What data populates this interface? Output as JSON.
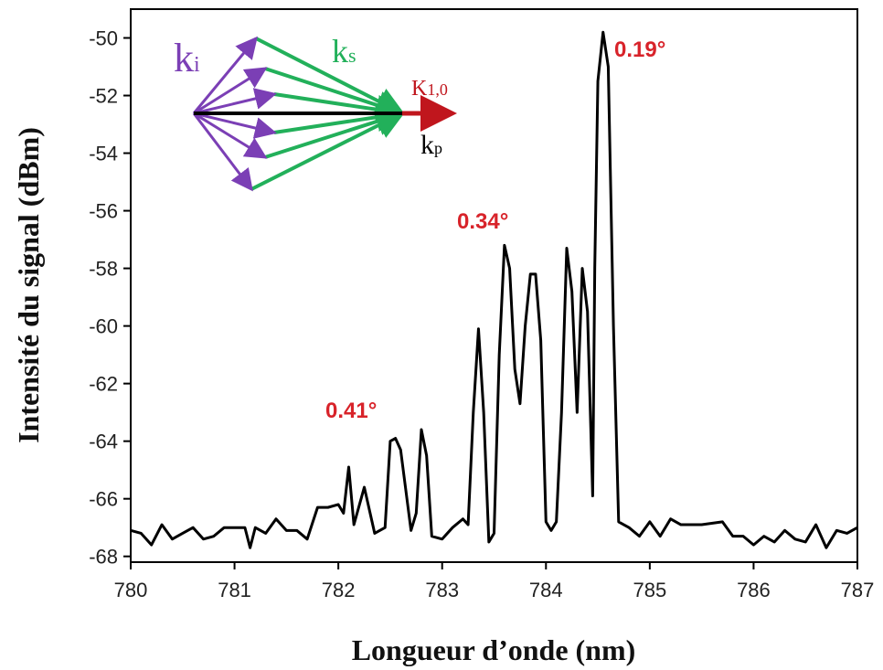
{
  "chart_data": {
    "type": "line",
    "x_label": "Longueur d’onde (nm)",
    "y_label": "Intensité du signal (dBm)",
    "xlim": [
      780,
      787
    ],
    "xticks": [
      780,
      781,
      782,
      783,
      784,
      785,
      786,
      787
    ],
    "ylim": [
      -68.2,
      -49
    ],
    "yticks": [
      -50,
      -52,
      -54,
      -56,
      -58,
      -60,
      -62,
      -64,
      -66,
      -68
    ],
    "series": [
      {
        "color": "#000000",
        "x": [
          780.0,
          780.1,
          780.2,
          780.3,
          780.4,
          780.5,
          780.6,
          780.7,
          780.8,
          780.9,
          781.0,
          781.1,
          781.15,
          781.2,
          781.3,
          781.4,
          781.5,
          781.6,
          781.7,
          781.8,
          781.9,
          782.0,
          782.05,
          782.1,
          782.15,
          782.25,
          782.35,
          782.45,
          782.5,
          782.55,
          782.6,
          782.7,
          782.75,
          782.8,
          782.85,
          782.9,
          783.0,
          783.1,
          783.2,
          783.25,
          783.3,
          783.35,
          783.4,
          783.45,
          783.5,
          783.55,
          783.6,
          783.65,
          783.7,
          783.75,
          783.8,
          783.85,
          783.9,
          783.95,
          784.0,
          784.05,
          784.1,
          784.15,
          784.2,
          784.25,
          784.3,
          784.35,
          784.4,
          784.45,
          784.47,
          784.5,
          784.55,
          784.6,
          784.65,
          784.7,
          784.8,
          784.9,
          785.0,
          785.1,
          785.2,
          785.3,
          785.5,
          785.7,
          785.8,
          785.9,
          786.0,
          786.1,
          786.2,
          786.3,
          786.4,
          786.5,
          786.6,
          786.7,
          786.8,
          786.9,
          787.0
        ],
        "values": [
          -67.1,
          -67.2,
          -67.6,
          -66.9,
          -67.4,
          -67.2,
          -67.0,
          -67.4,
          -67.3,
          -67.0,
          -67.0,
          -67.0,
          -67.7,
          -67.0,
          -67.2,
          -66.7,
          -67.1,
          -67.1,
          -67.4,
          -66.3,
          -66.3,
          -66.2,
          -66.5,
          -64.9,
          -66.9,
          -65.6,
          -67.2,
          -67.0,
          -64.0,
          -63.9,
          -64.3,
          -67.1,
          -66.5,
          -63.6,
          -64.5,
          -67.3,
          -67.4,
          -67.0,
          -66.7,
          -66.9,
          -63.0,
          -60.1,
          -63.0,
          -67.5,
          -67.2,
          -61.0,
          -57.2,
          -58.0,
          -61.5,
          -62.7,
          -60.0,
          -58.2,
          -58.2,
          -60.5,
          -66.8,
          -67.1,
          -66.8,
          -63.0,
          -57.3,
          -58.8,
          -63.0,
          -58.0,
          -59.5,
          -65.9,
          -58.0,
          -51.5,
          -49.8,
          -51.0,
          -60.0,
          -66.8,
          -67.0,
          -67.3,
          -66.8,
          -67.3,
          -66.7,
          -66.9,
          -66.9,
          -66.8,
          -67.3,
          -67.3,
          -67.6,
          -67.3,
          -67.5,
          -67.1,
          -67.4,
          -67.5,
          -66.9,
          -67.7,
          -67.1,
          -67.2,
          -67.0
        ]
      }
    ],
    "annotations": [
      "0.19°",
      "0.34°",
      "0.41°"
    ],
    "inset_labels": [
      {
        "base": "k",
        "sub": "i"
      },
      {
        "base": "k",
        "sub": "s"
      },
      {
        "base": "K",
        "sub": "1,0"
      },
      {
        "base": "k",
        "sub": "p"
      }
    ]
  }
}
